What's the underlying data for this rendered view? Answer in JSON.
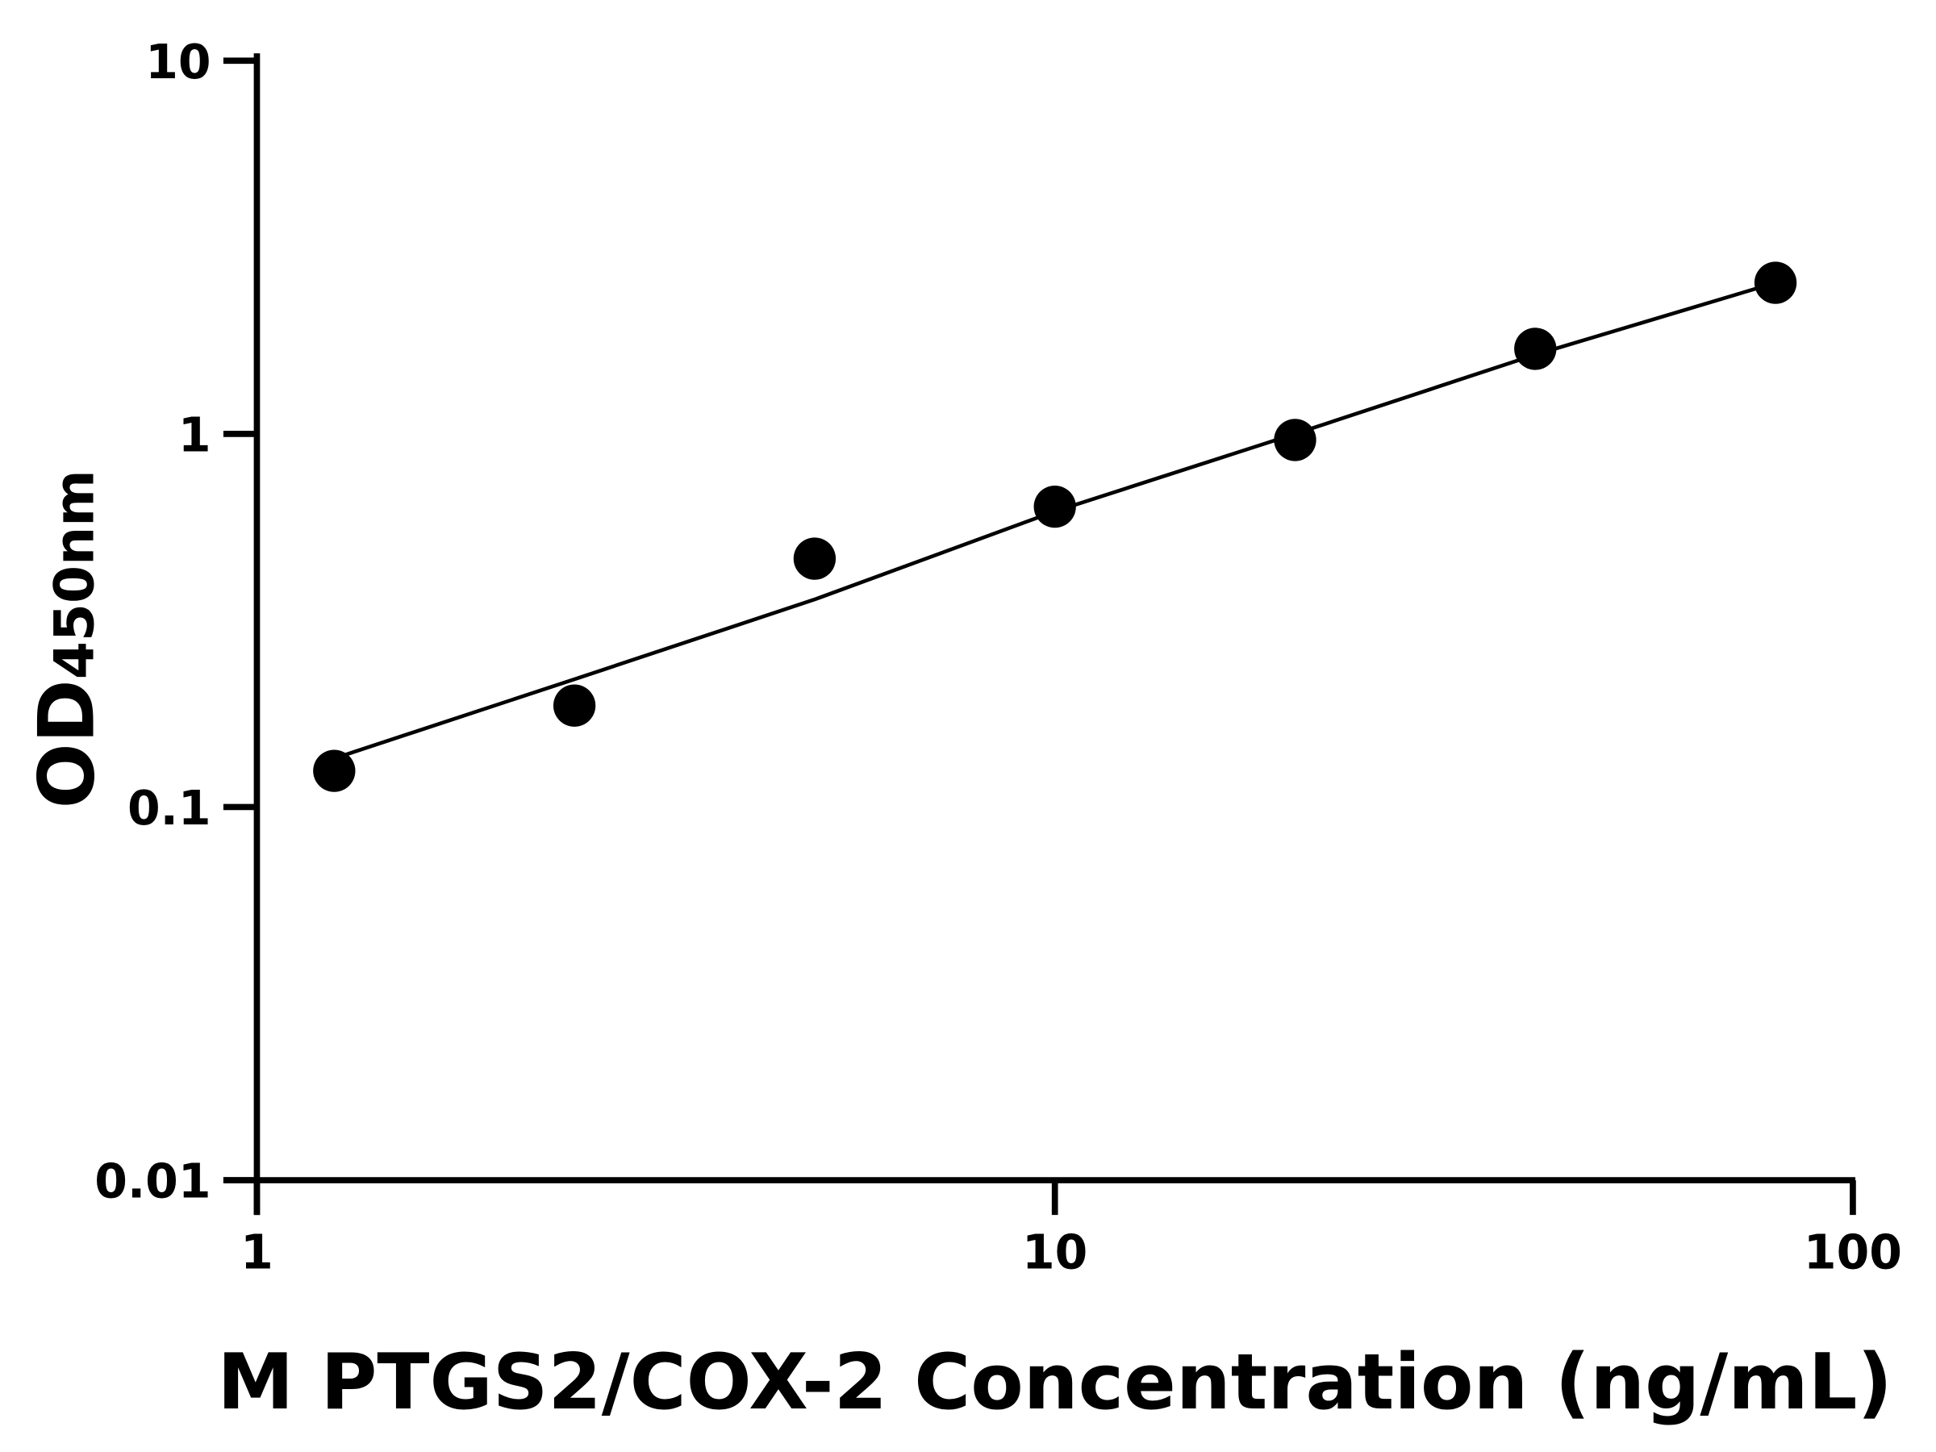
{
  "chart_data": {
    "type": "scatter",
    "title": "",
    "xlabel": "M PTGS2/COX-2 Concentration (ng/mL)",
    "ylabel_main": "OD",
    "ylabel_sub": "450nm",
    "x_scale": "log",
    "y_scale": "log",
    "xlim": [
      1,
      100
    ],
    "ylim": [
      0.01,
      10
    ],
    "x_ticks": [
      "1",
      "10",
      "100"
    ],
    "y_ticks": [
      "0.01",
      "0.1",
      "1",
      "10"
    ],
    "grid": false,
    "legend": "none",
    "color": "#000000",
    "series": [
      {
        "kind": "points",
        "x": [
          1.25,
          2.5,
          5,
          10,
          20,
          40,
          80
        ],
        "y": [
          0.125,
          0.187,
          0.463,
          0.638,
          0.963,
          1.69,
          2.54
        ]
      },
      {
        "kind": "fit-line",
        "x": [
          1.25,
          2.5,
          5,
          10,
          20,
          40,
          80
        ],
        "y": [
          0.135,
          0.22,
          0.36,
          0.62,
          1.0,
          1.63,
          2.54
        ]
      }
    ]
  }
}
